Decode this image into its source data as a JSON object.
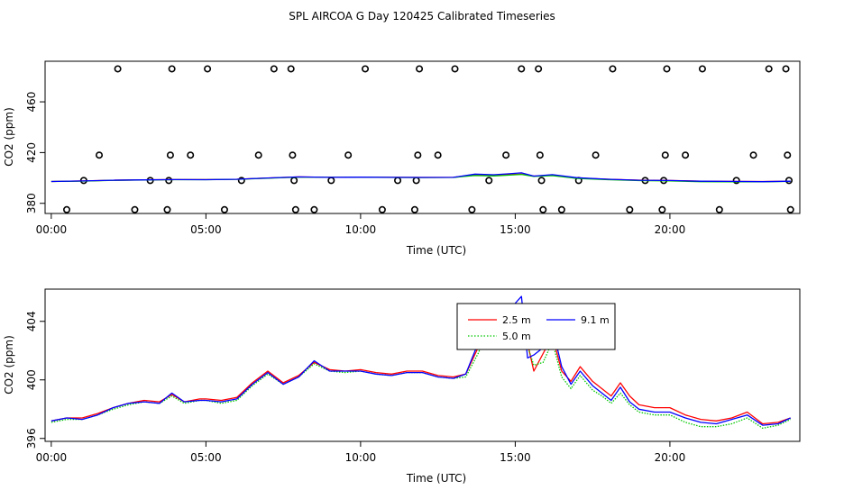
{
  "page": {
    "title": "SPL AIRCOA G  Day 120425  Calibrated Timeseries"
  },
  "chart_data": [
    {
      "type": "scatter",
      "xlabel": "Time (UTC)",
      "ylabel": "CO2 (ppm)",
      "xlim": [
        -0.2,
        24.2
      ],
      "ylim": [
        372,
        492
      ],
      "xticks": [
        0,
        5,
        10,
        15,
        20
      ],
      "xtick_labels": [
        "00:00",
        "05:00",
        "10:00",
        "15:00",
        "20:00"
      ],
      "yticks": [
        380,
        420,
        460
      ],
      "ytick_labels": [
        "380",
        "420",
        "460"
      ],
      "grid": false,
      "legend": "none",
      "marker_series": {
        "marker": "open-circle",
        "x": [
          0.5,
          1.05,
          1.55,
          2.15,
          2.7,
          3.2,
          3.75,
          3.8,
          3.85,
          3.9,
          4.5,
          5.05,
          5.6,
          6.15,
          6.7,
          7.2,
          7.75,
          7.8,
          7.85,
          7.9,
          8.5,
          9.05,
          9.6,
          10.15,
          10.7,
          11.2,
          11.75,
          11.8,
          11.85,
          11.9,
          12.5,
          13.05,
          13.6,
          14.15,
          14.7,
          15.2,
          15.75,
          15.8,
          15.85,
          15.9,
          16.5,
          17.05,
          17.6,
          18.15,
          18.7,
          19.2,
          19.75,
          19.8,
          19.85,
          19.9,
          20.5,
          21.05,
          21.6,
          22.15,
          22.7,
          23.2,
          23.75,
          23.8,
          23.85,
          23.9
        ],
        "y": [
          375,
          398,
          418,
          486,
          375,
          398,
          375,
          398,
          418,
          486,
          418,
          486,
          375,
          398,
          418,
          486,
          486,
          418,
          398,
          375,
          375,
          398,
          418,
          486,
          375,
          398,
          375,
          398,
          418,
          486,
          418,
          486,
          375,
          398,
          418,
          486,
          486,
          418,
          398,
          375,
          375,
          398,
          418,
          486,
          375,
          398,
          375,
          398,
          418,
          486,
          418,
          486,
          375,
          398,
          418,
          486,
          486,
          418,
          398,
          375
        ]
      },
      "series": [
        {
          "color": "#ff0000",
          "x": [
            0,
            1,
            2,
            3,
            4,
            5,
            6,
            7,
            8,
            9,
            10,
            11,
            12,
            13,
            13.7,
            14.3,
            14.7,
            15.2,
            15.6,
            16.2,
            17,
            18,
            19,
            20,
            21,
            22,
            23,
            23.9
          ],
          "y": [
            397.2,
            397.6,
            398.2,
            398.5,
            398.7,
            398.7,
            399.0,
            400.0,
            400.8,
            400.5,
            400.6,
            400.5,
            400.4,
            400.5,
            402.5,
            402.0,
            402.5,
            403.0,
            401.5,
            402.2,
            400.0,
            399.0,
            398.3,
            398.0,
            397.5,
            397.3,
            397.2,
            397.4
          ]
        },
        {
          "color": "#00c800",
          "x": [
            0,
            1,
            2,
            3,
            4,
            5,
            6,
            7,
            8,
            9,
            10,
            11,
            12,
            13,
            13.7,
            14.3,
            14.7,
            15.2,
            15.6,
            16.2,
            17,
            18,
            19,
            20,
            21,
            22,
            23,
            23.9
          ],
          "y": [
            397.2,
            397.5,
            398.1,
            398.4,
            398.6,
            398.6,
            398.9,
            399.8,
            400.7,
            400.5,
            400.6,
            400.4,
            400.3,
            400.4,
            402.0,
            401.6,
            402.1,
            402.8,
            401.2,
            401.8,
            399.6,
            398.6,
            397.9,
            397.7,
            397.1,
            396.9,
            396.9,
            397.3
          ]
        },
        {
          "color": "#0000ff",
          "x": [
            0,
            1,
            2,
            3,
            4,
            5,
            6,
            7,
            8,
            9,
            10,
            11,
            12,
            13,
            13.7,
            14.3,
            14.7,
            15.2,
            15.6,
            16.2,
            17,
            18,
            19,
            20,
            21,
            22,
            23,
            23.9
          ],
          "y": [
            397.2,
            397.6,
            398.2,
            398.5,
            398.7,
            398.6,
            399.0,
            400.0,
            400.8,
            400.5,
            400.6,
            400.5,
            400.4,
            400.5,
            403.0,
            402.5,
            403.2,
            404.0,
            401.5,
            402.6,
            400.2,
            399.0,
            398.2,
            398.0,
            397.4,
            397.3,
            397.1,
            397.4
          ]
        }
      ]
    },
    {
      "type": "line",
      "xlabel": "Time (UTC)",
      "ylabel": "CO2 (ppm)",
      "xlim": [
        -0.2,
        24.2
      ],
      "ylim": [
        395.8,
        406.2
      ],
      "xticks": [
        0,
        5,
        10,
        15,
        20
      ],
      "xtick_labels": [
        "00:00",
        "05:00",
        "10:00",
        "15:00",
        "20:00"
      ],
      "yticks": [
        396,
        400,
        404
      ],
      "ytick_labels": [
        "396",
        "400",
        "404"
      ],
      "grid": false,
      "legend": "top-center",
      "x": [
        0,
        0.5,
        1,
        1.5,
        2,
        2.5,
        3,
        3.5,
        3.9,
        4.3,
        4.8,
        5,
        5.5,
        6,
        6.5,
        7,
        7.5,
        8,
        8.5,
        9,
        9.5,
        10,
        10.5,
        11,
        11.5,
        12,
        12.5,
        13,
        13.4,
        13.8,
        14.0,
        14.3,
        14.6,
        14.9,
        15.2,
        15.4,
        15.6,
        15.9,
        16.2,
        16.5,
        16.8,
        17.1,
        17.5,
        17.8,
        18.1,
        18.4,
        18.7,
        19.0,
        19.5,
        20,
        20.5,
        21,
        21.5,
        22,
        22.5,
        23,
        23.5,
        23.9
      ],
      "series": [
        {
          "name": "2.5 m",
          "color": "#ff0000",
          "style": "solid",
          "y": [
            397.2,
            397.4,
            397.4,
            397.7,
            398.1,
            398.4,
            398.6,
            398.5,
            399.0,
            398.5,
            398.7,
            398.7,
            398.6,
            398.8,
            399.8,
            400.6,
            399.8,
            400.3,
            401.2,
            400.7,
            400.6,
            400.7,
            400.5,
            400.4,
            400.6,
            400.6,
            400.3,
            400.2,
            400.4,
            402.2,
            404.0,
            402.8,
            403.5,
            404.5,
            405.0,
            402.5,
            400.6,
            401.8,
            403.0,
            400.6,
            399.9,
            400.9,
            399.9,
            399.4,
            398.9,
            399.8,
            398.9,
            398.3,
            398.1,
            398.1,
            397.6,
            397.3,
            397.2,
            397.4,
            397.8,
            397.0,
            397.1,
            397.4
          ]
        },
        {
          "name": "5.0 m",
          "color": "#00c800",
          "style": "dotted",
          "y": [
            397.1,
            397.3,
            397.3,
            397.6,
            398.0,
            398.3,
            398.5,
            398.4,
            398.9,
            398.4,
            398.6,
            398.6,
            398.4,
            398.6,
            399.6,
            400.4,
            399.7,
            400.2,
            401.1,
            400.6,
            400.5,
            400.6,
            400.4,
            400.3,
            400.5,
            400.5,
            400.2,
            400.1,
            400.2,
            401.8,
            402.8,
            402.2,
            402.8,
            403.6,
            404.6,
            402.3,
            401.0,
            401.2,
            402.6,
            400.2,
            399.4,
            400.3,
            399.3,
            398.9,
            398.4,
            399.1,
            398.3,
            397.8,
            397.6,
            397.6,
            397.1,
            396.8,
            396.8,
            397.0,
            397.4,
            396.7,
            396.9,
            397.3
          ]
        },
        {
          "name": "9.1 m",
          "color": "#0000ff",
          "style": "solid",
          "y": [
            397.2,
            397.4,
            397.3,
            397.6,
            398.1,
            398.4,
            398.5,
            398.4,
            399.1,
            398.5,
            398.6,
            398.6,
            398.5,
            398.7,
            399.7,
            400.5,
            399.7,
            400.2,
            401.3,
            400.6,
            400.6,
            400.6,
            400.4,
            400.3,
            400.5,
            400.5,
            400.2,
            400.1,
            400.4,
            402.5,
            404.7,
            403.2,
            404.3,
            405.0,
            405.7,
            401.5,
            401.7,
            402.2,
            403.6,
            400.9,
            399.7,
            400.6,
            399.6,
            399.1,
            398.6,
            399.5,
            398.5,
            398.0,
            397.8,
            397.8,
            397.4,
            397.1,
            397.0,
            397.3,
            397.6,
            396.9,
            397.0,
            397.4
          ]
        }
      ]
    }
  ]
}
